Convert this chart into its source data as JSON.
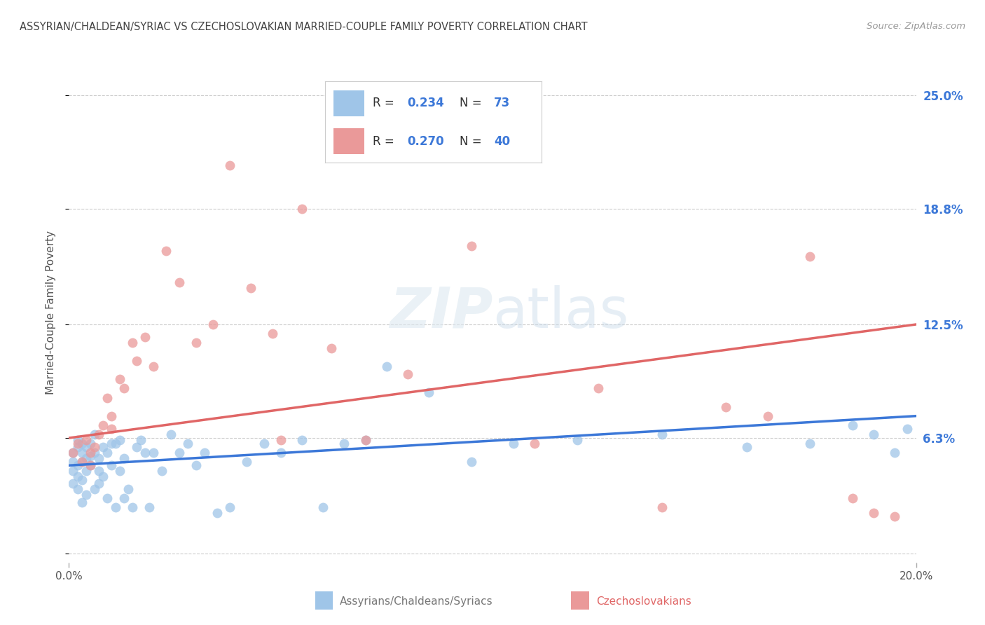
{
  "title": "ASSYRIAN/CHALDEAN/SYRIAC VS CZECHOSLOVAKIAN MARRIED-COUPLE FAMILY POVERTY CORRELATION CHART",
  "source": "Source: ZipAtlas.com",
  "ylabel": "Married-Couple Family Poverty",
  "xlabel_assyrian": "Assyrians/Chaldeans/Syriacs",
  "xlabel_czechoslovakian": "Czechoslovakians",
  "xmin": 0.0,
  "xmax": 0.2,
  "ymin": -0.005,
  "ymax": 0.268,
  "yticks": [
    0.0,
    0.063,
    0.125,
    0.188,
    0.25
  ],
  "ytick_labels": [
    "",
    "6.3%",
    "12.5%",
    "18.8%",
    "25.0%"
  ],
  "xtick_labels": [
    "0.0%",
    "20.0%"
  ],
  "grid_color": "#cccccc",
  "r_assyrian": "0.234",
  "n_assyrian": "73",
  "r_czech": "0.270",
  "n_czech": "40",
  "color_assyrian": "#9fc5e8",
  "color_czech": "#ea9999",
  "line_color_assyrian": "#3c78d8",
  "line_color_czech": "#e06666",
  "title_color": "#444444",
  "axis_label_color": "#555555",
  "right_tick_color": "#3c78d8",
  "legend_text_color": "#333333",
  "legend_num_color": "#3c78d8",
  "source_color": "#999999",
  "assyrian_x": [
    0.001,
    0.001,
    0.001,
    0.001,
    0.002,
    0.002,
    0.002,
    0.002,
    0.002,
    0.003,
    0.003,
    0.003,
    0.003,
    0.003,
    0.004,
    0.004,
    0.004,
    0.004,
    0.005,
    0.005,
    0.005,
    0.006,
    0.006,
    0.006,
    0.007,
    0.007,
    0.007,
    0.008,
    0.008,
    0.009,
    0.009,
    0.01,
    0.01,
    0.011,
    0.011,
    0.012,
    0.012,
    0.013,
    0.013,
    0.014,
    0.015,
    0.016,
    0.017,
    0.018,
    0.019,
    0.02,
    0.022,
    0.024,
    0.026,
    0.028,
    0.03,
    0.032,
    0.035,
    0.038,
    0.042,
    0.046,
    0.05,
    0.055,
    0.06,
    0.065,
    0.07,
    0.075,
    0.085,
    0.095,
    0.105,
    0.12,
    0.14,
    0.16,
    0.175,
    0.185,
    0.19,
    0.195,
    0.198
  ],
  "assyrian_y": [
    0.05,
    0.045,
    0.055,
    0.038,
    0.042,
    0.048,
    0.058,
    0.035,
    0.062,
    0.04,
    0.05,
    0.055,
    0.028,
    0.06,
    0.045,
    0.052,
    0.058,
    0.032,
    0.048,
    0.053,
    0.06,
    0.035,
    0.055,
    0.065,
    0.038,
    0.045,
    0.052,
    0.042,
    0.058,
    0.03,
    0.055,
    0.048,
    0.06,
    0.025,
    0.06,
    0.045,
    0.062,
    0.03,
    0.052,
    0.035,
    0.025,
    0.058,
    0.062,
    0.055,
    0.025,
    0.055,
    0.045,
    0.065,
    0.055,
    0.06,
    0.048,
    0.055,
    0.022,
    0.025,
    0.05,
    0.06,
    0.055,
    0.062,
    0.025,
    0.06,
    0.062,
    0.102,
    0.088,
    0.05,
    0.06,
    0.062,
    0.065,
    0.058,
    0.06,
    0.07,
    0.065,
    0.055,
    0.068
  ],
  "czech_x": [
    0.001,
    0.002,
    0.003,
    0.004,
    0.005,
    0.006,
    0.007,
    0.008,
    0.009,
    0.01,
    0.012,
    0.013,
    0.015,
    0.016,
    0.018,
    0.02,
    0.023,
    0.026,
    0.03,
    0.034,
    0.038,
    0.043,
    0.048,
    0.055,
    0.062,
    0.07,
    0.08,
    0.095,
    0.11,
    0.125,
    0.14,
    0.155,
    0.165,
    0.175,
    0.185,
    0.19,
    0.195,
    0.01,
    0.005,
    0.05
  ],
  "czech_y": [
    0.055,
    0.06,
    0.05,
    0.062,
    0.055,
    0.058,
    0.065,
    0.07,
    0.085,
    0.075,
    0.095,
    0.09,
    0.115,
    0.105,
    0.118,
    0.102,
    0.165,
    0.148,
    0.115,
    0.125,
    0.212,
    0.145,
    0.12,
    0.188,
    0.112,
    0.062,
    0.098,
    0.168,
    0.06,
    0.09,
    0.025,
    0.08,
    0.075,
    0.162,
    0.03,
    0.022,
    0.02,
    0.068,
    0.048,
    0.062
  ],
  "line_ass_x0": 0.0,
  "line_ass_x1": 0.2,
  "line_ass_y0": 0.048,
  "line_ass_y1": 0.075,
  "line_cz_x0": 0.0,
  "line_cz_x1": 0.2,
  "line_cz_y0": 0.063,
  "line_cz_y1": 0.125
}
